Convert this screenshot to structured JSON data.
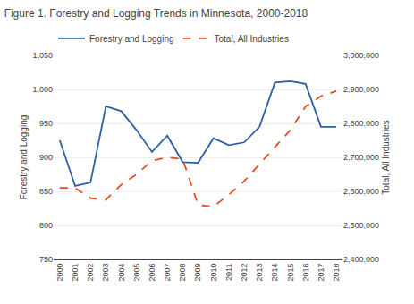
{
  "chart_data": {
    "type": "line",
    "title": "Figure 1. Forestry and Logging Trends in Minnesota, 2000-2018",
    "x": [
      2000,
      2001,
      2002,
      2003,
      2004,
      2005,
      2006,
      2007,
      2008,
      2009,
      2010,
      2011,
      2012,
      2013,
      2014,
      2015,
      2016,
      2017,
      2018
    ],
    "series": [
      {
        "name": "Forestry and Logging",
        "color": "#2E5FA3",
        "line_style": "solid",
        "axis": "y",
        "values": [
          925,
          858,
          863,
          975,
          968,
          940,
          908,
          932,
          893,
          892,
          928,
          918,
          922,
          945,
          1010,
          1012,
          1008,
          945,
          945
        ]
      },
      {
        "name": "Total, All Industries",
        "color": "#E84B1A",
        "line_style": "dashed",
        "axis": "y2",
        "values": [
          2610000,
          2610000,
          2580000,
          2575000,
          2620000,
          2650000,
          2690000,
          2700000,
          2695000,
          2560000,
          2555000,
          2590000,
          2630000,
          2680000,
          2730000,
          2780000,
          2850000,
          2880000,
          2895000
        ]
      }
    ],
    "xlim": [
      1999.6,
      2018.4
    ],
    "xticks": [
      2000,
      2001,
      2002,
      2003,
      2004,
      2005,
      2006,
      2007,
      2008,
      2009,
      2010,
      2011,
      2012,
      2013,
      2014,
      2015,
      2016,
      2017,
      2018
    ],
    "ylabel": "Forestry and Logging",
    "ylim": [
      750,
      1050
    ],
    "yticks": [
      750,
      800,
      850,
      900,
      950,
      {
        "value": 1000,
        "label": "1,000"
      },
      {
        "value": 1050,
        "label": "1,050"
      }
    ],
    "y2label": "Total, All Industries",
    "y2lim": [
      2400000,
      3000000
    ],
    "y2ticks": [
      {
        "value": 2400000,
        "label": "2,400,000"
      },
      {
        "value": 2500000,
        "label": "2,500,000"
      },
      {
        "value": 2600000,
        "label": "2,600,000"
      },
      {
        "value": 2700000,
        "label": "2,700,000"
      },
      {
        "value": 2800000,
        "label": "2,800,000"
      },
      {
        "value": 2900000,
        "label": "2,900,000"
      },
      {
        "value": 3000000,
        "label": "3,000,000"
      }
    ],
    "grid": true,
    "legend": "top"
  }
}
